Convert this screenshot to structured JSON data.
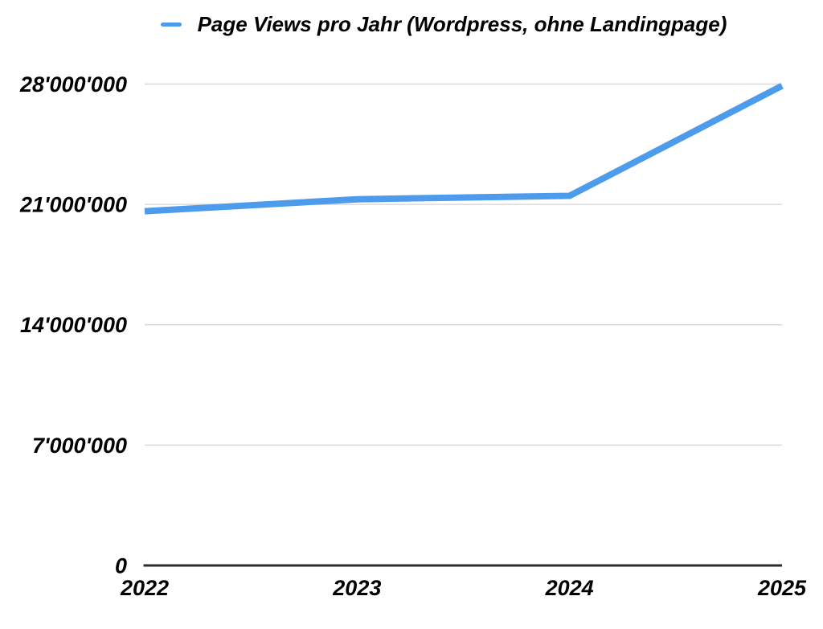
{
  "colors": {
    "line": "#4D9CEB",
    "grid": "#D9D9D9",
    "axis": "#2D2D2D",
    "text": "#000000",
    "background": "#FFFFFF"
  },
  "legend": {
    "marker": "line-dash"
  },
  "chart_data": {
    "type": "line",
    "title": "Page Views pro Jahr (Wordpress, ohne Landingpage)",
    "x": [
      "2022",
      "2023",
      "2024",
      "2025"
    ],
    "series": [
      {
        "name": "Page Views pro Jahr (Wordpress, ohne Landingpage)",
        "values": [
          20600000,
          21300000,
          21500000,
          27900000
        ],
        "color": "#4D9CEB"
      }
    ],
    "ylim": [
      0,
      28000000
    ],
    "y_ticks": [
      {
        "value": 28000000,
        "label": "28'000'000"
      },
      {
        "value": 21000000,
        "label": "21'000'000"
      },
      {
        "value": 14000000,
        "label": "14'000'000"
      },
      {
        "value": 7000000,
        "label": "7'000'000"
      },
      {
        "value": 0,
        "label": "0"
      }
    ],
    "grid": true,
    "legend_position": "top"
  }
}
